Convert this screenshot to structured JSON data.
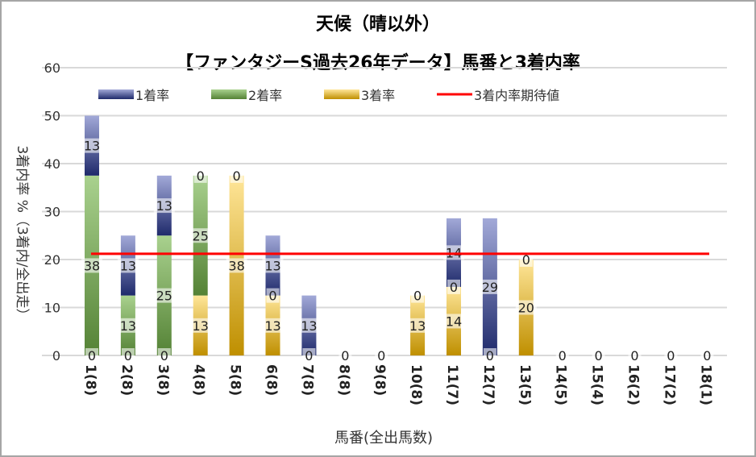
{
  "chart_data": {
    "type": "bar",
    "stacked": true,
    "title": "天候（晴以外）",
    "subtitle": "【ファンタジーS過去26年データ】馬番と3着内率",
    "xlabel": "馬番(全出馬数)",
    "ylabel": "3着内率 %（3着内/全出走）",
    "ylim": [
      0,
      60
    ],
    "yticks": [
      0,
      10,
      20,
      30,
      40,
      50,
      60
    ],
    "grid": true,
    "legend_position": "top",
    "categories": [
      "1(8)",
      "2(8)",
      "3(8)",
      "4(8)",
      "5(8)",
      "6(8)",
      "7(8)",
      "8(8)",
      "9(8)",
      "10(8)",
      "11(7)",
      "12(7)",
      "13(5)",
      "14(5)",
      "15(4)",
      "16(2)",
      "17(2)",
      "18(1)"
    ],
    "series": [
      {
        "name": "3着率",
        "color_top": "#fde49a",
        "color_bottom": "#bf8f00",
        "values": [
          0,
          0,
          0,
          12.5,
          37.5,
          12.5,
          0,
          0,
          0,
          12.5,
          14.3,
          0,
          20,
          0,
          0,
          0,
          0,
          0
        ],
        "labels": [
          "0",
          "0",
          "0",
          "13",
          "38",
          "13",
          "0",
          "0",
          "0",
          "13",
          "14",
          "0",
          "20",
          "0",
          "0",
          "0",
          "0",
          "0"
        ]
      },
      {
        "name": "2着率",
        "color_top": "#a9d18e",
        "color_bottom": "#548235",
        "values": [
          37.5,
          12.5,
          25,
          25,
          0,
          0,
          0,
          0,
          0,
          0,
          0,
          0,
          0,
          0,
          0,
          0,
          0,
          0
        ],
        "labels": [
          "38",
          "13",
          "25",
          "25",
          "0",
          "0",
          null,
          null,
          null,
          "0",
          "0",
          null,
          "0",
          null,
          null,
          null,
          null,
          null
        ]
      },
      {
        "name": "1着率",
        "color_top": "#a0a8d8",
        "color_bottom": "#1f2a6b",
        "values": [
          12.5,
          12.5,
          12.5,
          0,
          0,
          12.5,
          12.5,
          0,
          0,
          0,
          14.3,
          28.6,
          0,
          0,
          0,
          0,
          0,
          0
        ],
        "labels": [
          "13",
          "13",
          "13",
          "0",
          null,
          "13",
          "13",
          null,
          null,
          null,
          "14",
          "29",
          null,
          null,
          null,
          null,
          null,
          null
        ]
      }
    ],
    "expected_line": {
      "name": "3着内率期待値",
      "value": 21.2,
      "color": "#ff0000"
    },
    "legend": [
      "1着率",
      "2着率",
      "3着率",
      "3着内率期待値"
    ]
  }
}
